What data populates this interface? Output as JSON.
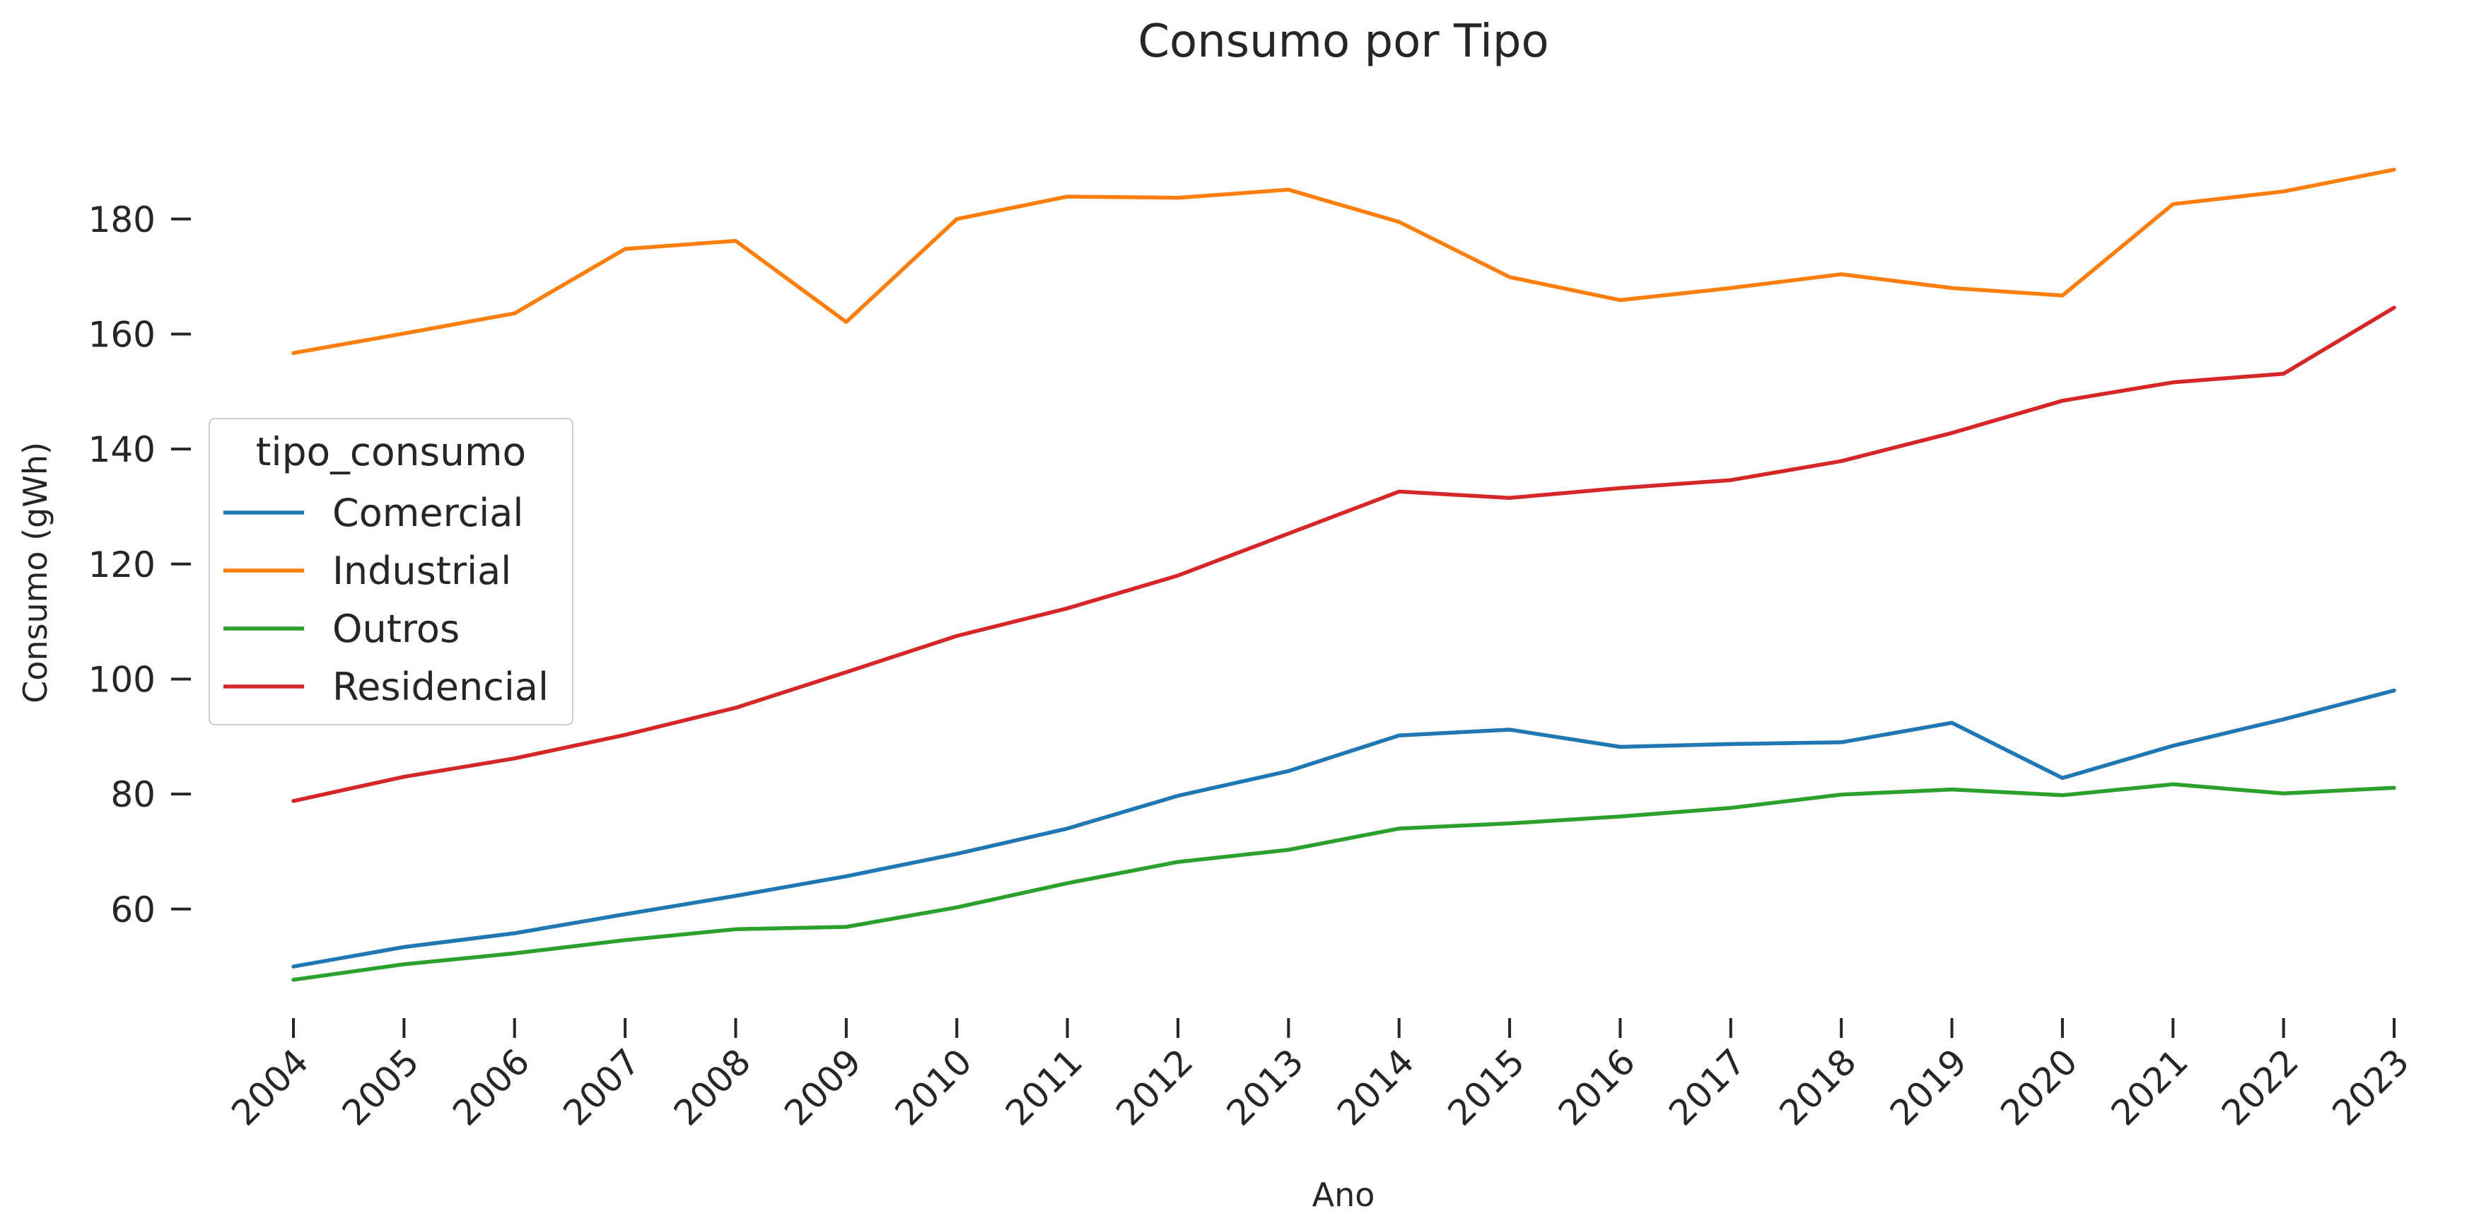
{
  "chart_data": {
    "type": "line",
    "title": "Consumo por Tipo",
    "xlabel": "Ano",
    "ylabel": "Consumo (gWh)",
    "x": [
      "2004",
      "2005",
      "2006",
      "2007",
      "2008",
      "2009",
      "2010",
      "2011",
      "2012",
      "2013",
      "2014",
      "2015",
      "2016",
      "2017",
      "2018",
      "2019",
      "2020",
      "2021",
      "2022",
      "2023"
    ],
    "y_ticks": [
      60,
      80,
      100,
      120,
      140,
      160,
      180
    ],
    "ylim": [
      43.5,
      193.5
    ],
    "grid": false,
    "legend": {
      "title": "tipo_consumo",
      "placement": "center-left"
    },
    "series": [
      {
        "name": "Comercial",
        "color": "#1f77b4",
        "values": [
          50.0,
          53.4,
          55.8,
          59.1,
          62.3,
          65.7,
          69.6,
          74.0,
          79.7,
          84.0,
          90.2,
          91.2,
          88.2,
          88.7,
          89.0,
          92.4,
          82.8,
          88.4,
          93.0,
          98.0
        ]
      },
      {
        "name": "Industrial",
        "color": "#ff7f0e",
        "values": [
          156.7,
          160.1,
          163.6,
          174.8,
          176.2,
          162.1,
          180.0,
          183.9,
          183.7,
          185.1,
          179.5,
          169.9,
          165.9,
          168.0,
          170.4,
          168.0,
          166.7,
          182.6,
          184.8,
          188.6
        ]
      },
      {
        "name": "Outros",
        "color": "#2ca02c",
        "values": [
          47.7,
          50.4,
          52.3,
          54.6,
          56.5,
          56.9,
          60.3,
          64.5,
          68.2,
          70.3,
          74.0,
          74.9,
          76.1,
          77.6,
          79.9,
          80.8,
          79.8,
          81.7,
          80.1,
          81.1
        ]
      },
      {
        "name": "Residencial",
        "color": "#d62728",
        "values": [
          78.8,
          83.0,
          86.2,
          90.3,
          95.0,
          101.2,
          107.5,
          112.3,
          118.0,
          125.3,
          132.6,
          131.5,
          133.2,
          134.6,
          137.9,
          142.8,
          148.4,
          151.6,
          153.1,
          164.6
        ]
      }
    ]
  }
}
